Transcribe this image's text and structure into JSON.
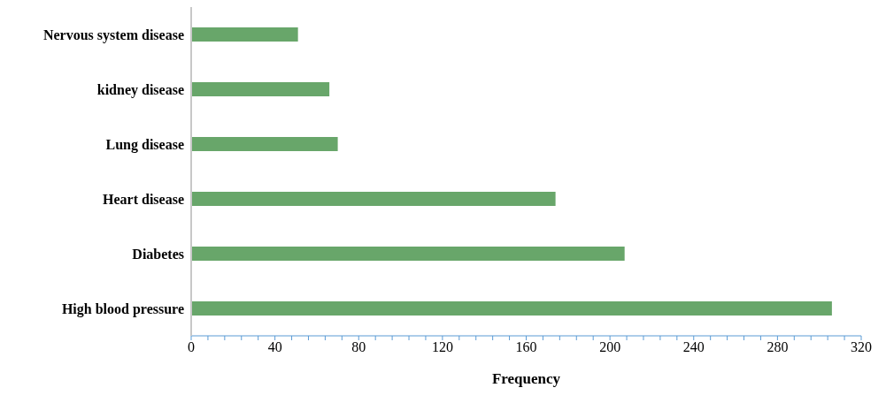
{
  "chart_data": {
    "type": "bar",
    "orientation": "horizontal",
    "xlabel": "Frequency",
    "categories": [
      "Nervous system disease",
      "kidney disease",
      "Lung disease",
      "Heart disease",
      "Diabetes",
      "High blood pressure"
    ],
    "values": [
      51,
      66,
      70,
      174,
      207,
      306
    ],
    "color": "#68a66a",
    "xlim": [
      0,
      320
    ],
    "xticks": [
      0,
      {
        "value": 8,
        "label": null
      },
      {
        "value": 16,
        "label": null
      },
      {
        "value": 24,
        "label": null
      },
      {
        "value": 32,
        "label": null
      },
      40,
      {
        "value": 48,
        "label": null
      },
      {
        "value": 56,
        "label": null
      },
      {
        "value": 64,
        "label": null
      },
      {
        "value": 72,
        "label": null
      },
      80,
      {
        "value": 88,
        "label": null
      },
      {
        "value": 96,
        "label": null
      },
      {
        "value": 104,
        "label": null
      },
      {
        "value": 112,
        "label": null
      },
      120,
      {
        "value": 128,
        "label": null
      },
      {
        "value": 136,
        "label": null
      },
      {
        "value": 144,
        "label": null
      },
      {
        "value": 152,
        "label": null
      },
      160,
      {
        "value": 168,
        "label": null
      },
      {
        "value": 176,
        "label": null
      },
      {
        "value": 184,
        "label": null
      },
      {
        "value": 192,
        "label": null
      },
      200,
      {
        "value": 208,
        "label": null
      },
      {
        "value": 216,
        "label": null
      },
      {
        "value": 224,
        "label": null
      },
      {
        "value": 232,
        "label": null
      },
      240,
      {
        "value": 248,
        "label": null
      },
      {
        "value": 256,
        "label": null
      },
      {
        "value": 264,
        "label": null
      },
      {
        "value": 272,
        "label": null
      },
      280,
      {
        "value": 288,
        "label": null
      },
      {
        "value": 296,
        "label": null
      },
      {
        "value": 304,
        "label": null
      },
      {
        "value": 312,
        "label": null
      },
      320
    ],
    "grid": false,
    "legend": false
  }
}
